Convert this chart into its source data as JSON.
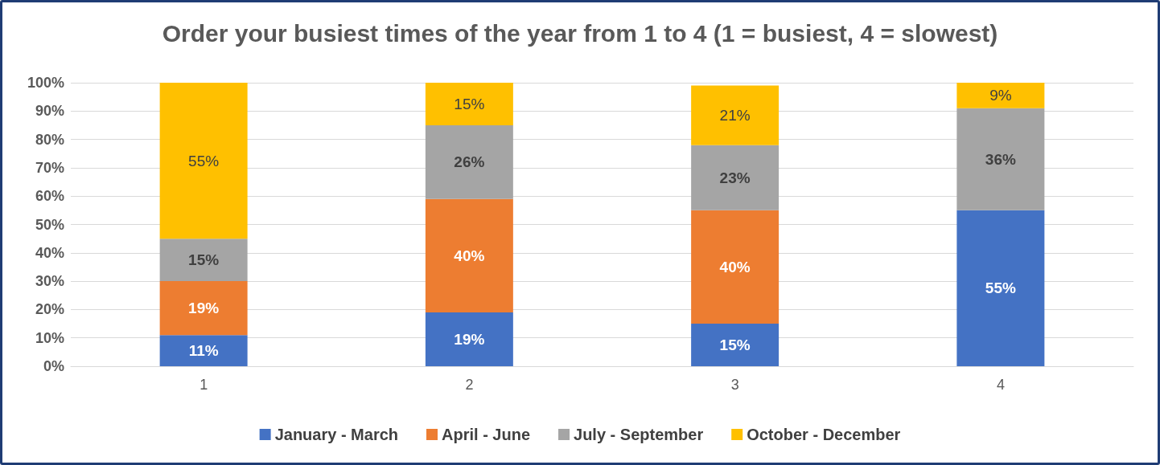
{
  "chart_data": {
    "type": "bar",
    "stacked": true,
    "title": "Order your busiest times of the year from 1 to 4 (1 = busiest, 4 = slowest)",
    "categories": [
      "1",
      "2",
      "3",
      "4"
    ],
    "series": [
      {
        "name": "January - March",
        "color": "#4472c4",
        "values": [
          11,
          19,
          15,
          55
        ],
        "value_labels": [
          "11%",
          "19%",
          "15%",
          "55%"
        ]
      },
      {
        "name": "April - June",
        "color": "#ed7d31",
        "values": [
          19,
          40,
          40,
          null
        ],
        "value_labels": [
          "19%",
          "40%",
          "40%",
          null
        ]
      },
      {
        "name": "July - September",
        "color": "#a5a5a5",
        "values": [
          15,
          26,
          23,
          36
        ],
        "value_labels": [
          "15%",
          "26%",
          "23%",
          "36%"
        ]
      },
      {
        "name": "October - December",
        "color": "#ffc000",
        "values": [
          55,
          15,
          21,
          9
        ],
        "value_labels": [
          "55%",
          "15%",
          "21%",
          "9%"
        ]
      }
    ],
    "ylim": [
      0,
      100
    ],
    "yticks": [
      {
        "value": 0,
        "label": "0%"
      },
      {
        "value": 10,
        "label": "10%"
      },
      {
        "value": 20,
        "label": "20%"
      },
      {
        "value": 30,
        "label": "30%"
      },
      {
        "value": 40,
        "label": "40%"
      },
      {
        "value": 50,
        "label": "50%"
      },
      {
        "value": 60,
        "label": "60%"
      },
      {
        "value": 70,
        "label": "70%"
      },
      {
        "value": 80,
        "label": "80%"
      },
      {
        "value": 90,
        "label": "90%"
      },
      {
        "value": 100,
        "label": "100%"
      }
    ],
    "grid": "y",
    "legend": "bottom"
  }
}
